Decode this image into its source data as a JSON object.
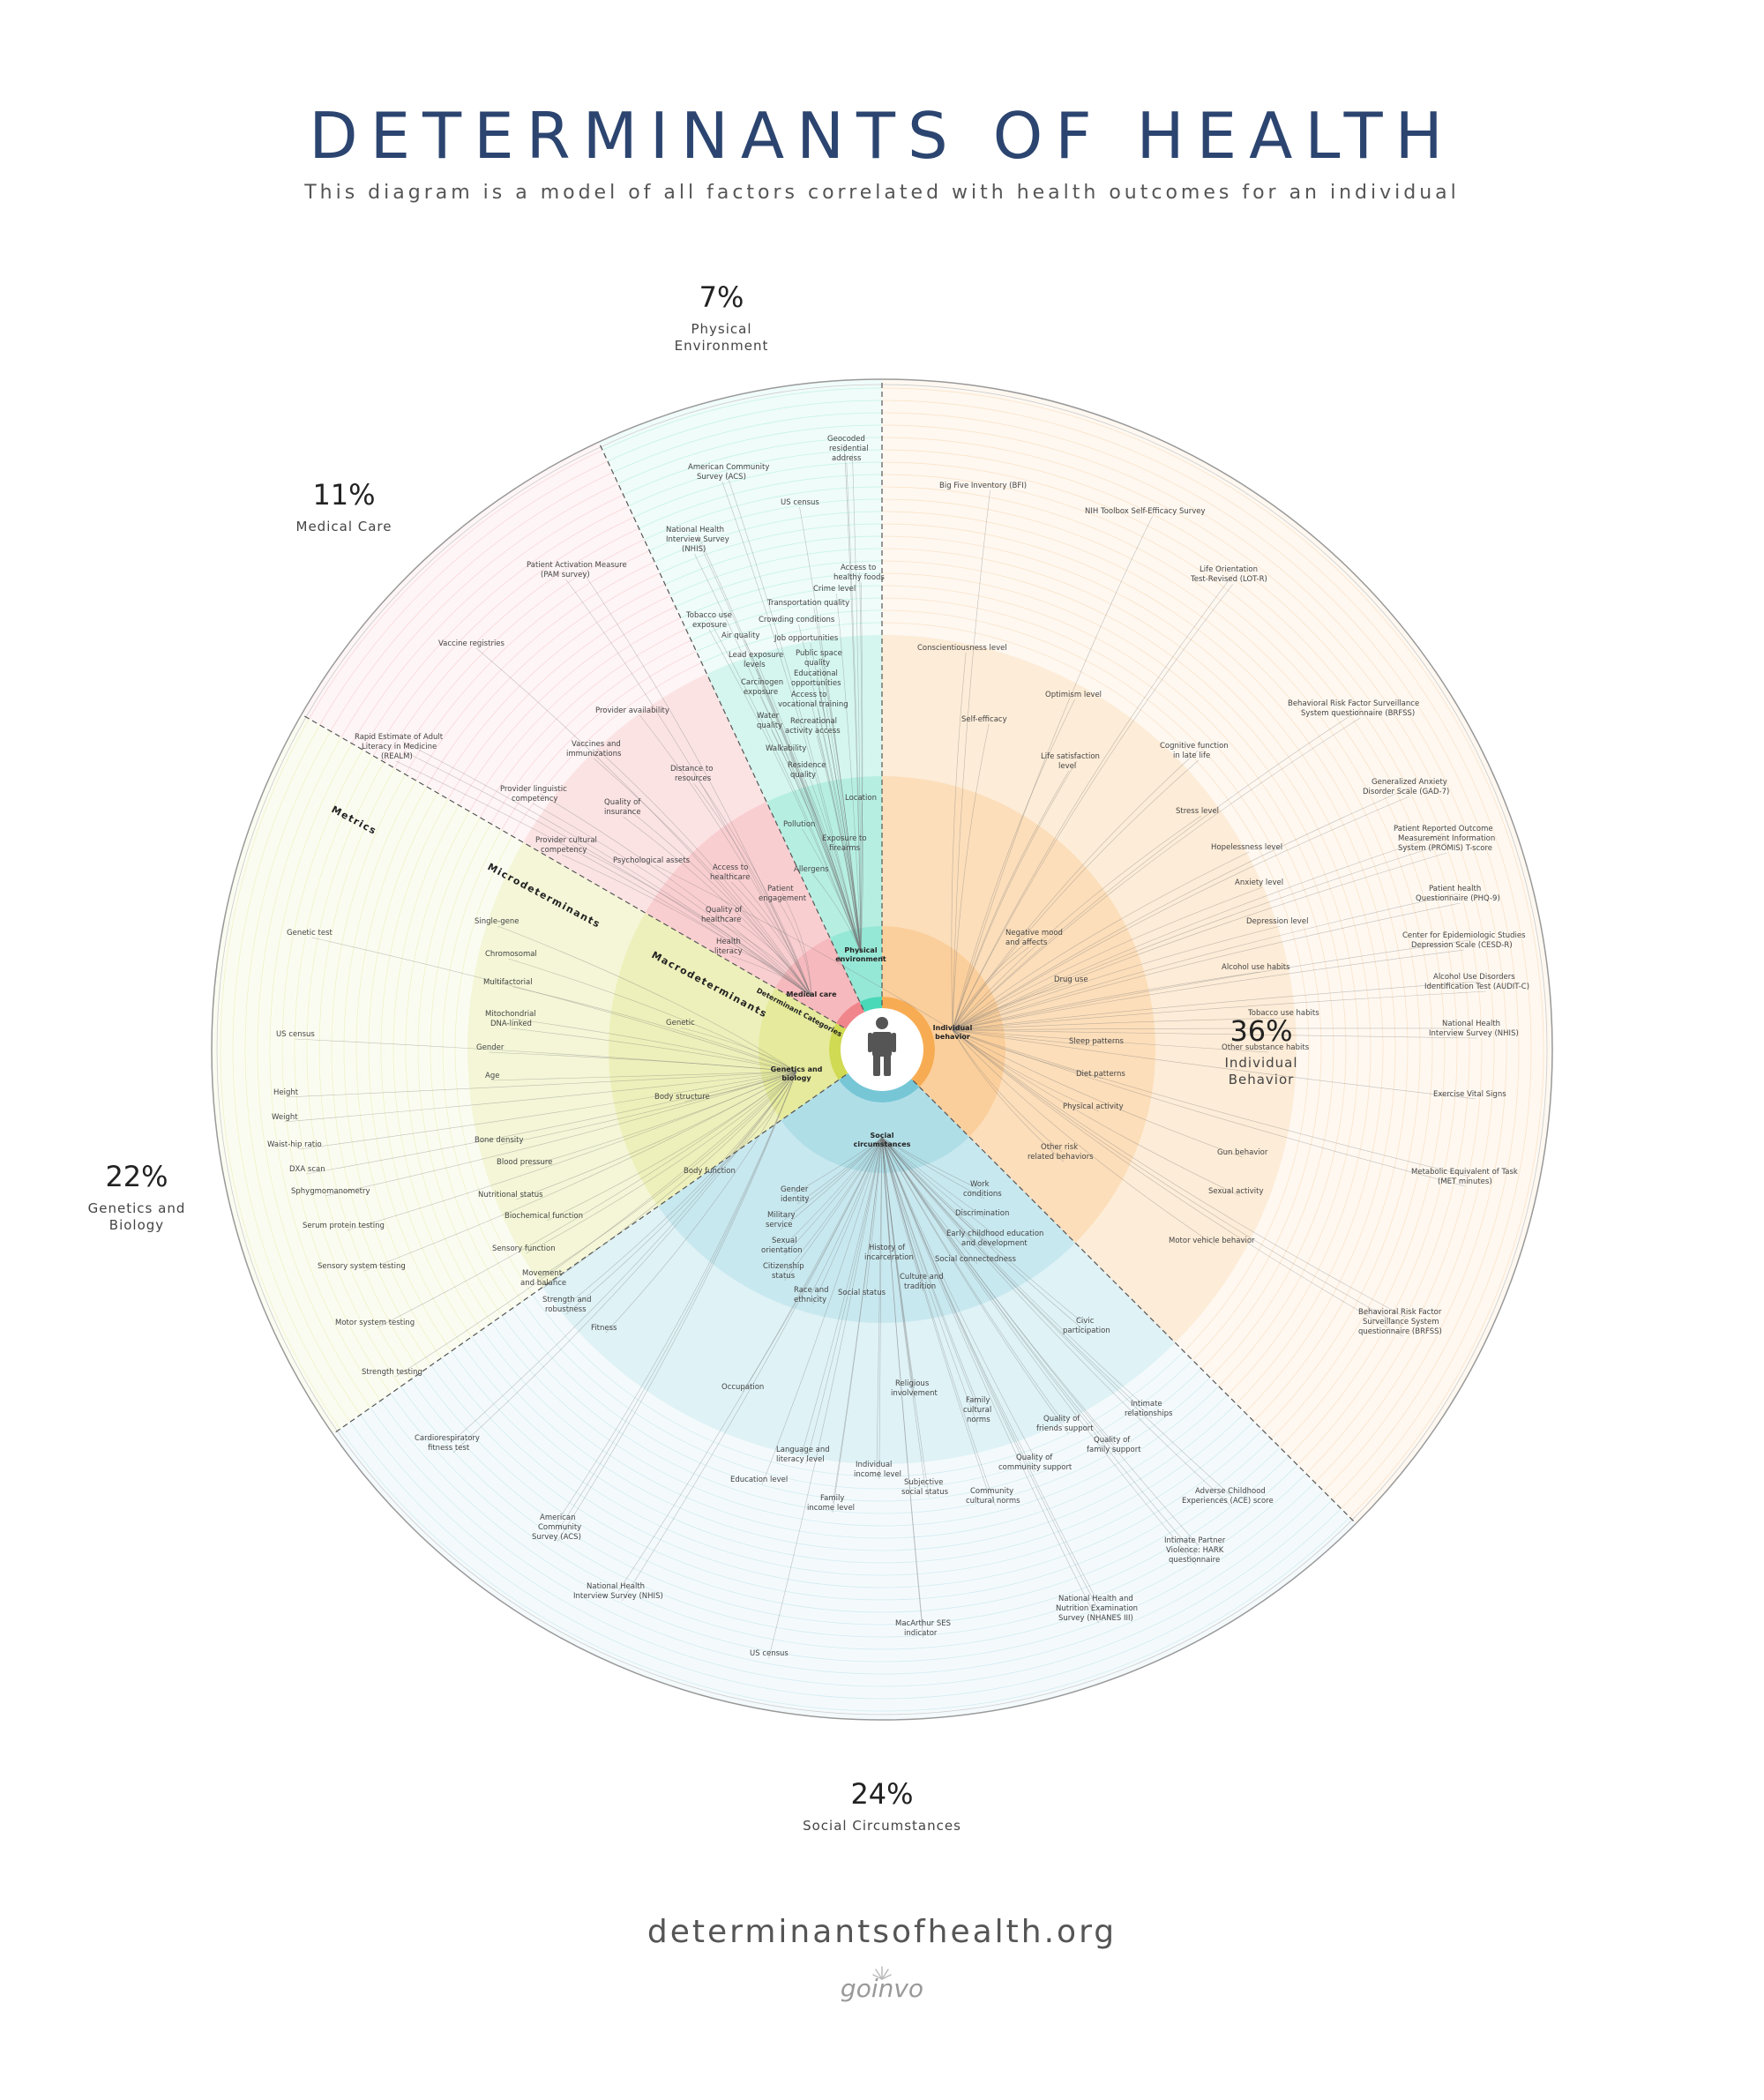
{
  "header": {
    "title": "DETERMINANTS OF HEALTH",
    "subtitle": "This diagram is a model of all factors correlated with health outcomes for an individual"
  },
  "colors": {
    "individual": "#f7a84a",
    "social": "#6fc3d4",
    "genetics": "#cfd84a",
    "medical": "#ef7f86",
    "physical": "#3fd6b4",
    "dashed": "#555555",
    "title": "#2c4570"
  },
  "ring_labels": {
    "metrics": "Metrics",
    "micro": "Microdeterminants",
    "macro": "Macrodeterminants",
    "categories": "Determinant Categories"
  },
  "sectors": [
    {
      "key": "individual",
      "percent": "36%",
      "name": [
        "Individual",
        "Behavior"
      ],
      "category": [
        "Individual",
        "behavior"
      ],
      "macro": [
        [
          "Psychological assets",
          695,
          978
        ],
        [
          "Negative mood",
          1140,
          1060
        ],
        [
          "and affects",
          1140,
          1071
        ],
        [
          "Drug use",
          1195,
          1113
        ],
        [
          "Sleep patterns",
          1212,
          1183
        ],
        [
          "Diet patterns",
          1220,
          1220
        ],
        [
          "Physical activity",
          1205,
          1257
        ],
        [
          "Other risk",
          1180,
          1303
        ],
        [
          "related behaviors",
          1165,
          1314
        ]
      ],
      "micro": [
        [
          "Conscientiousness level",
          1040,
          737
        ],
        [
          "Self-efficacy",
          1090,
          818
        ],
        [
          "Optimism level",
          1185,
          790
        ],
        [
          "Life satisfaction",
          1180,
          860
        ],
        [
          "level",
          1200,
          871
        ],
        [
          "Cognitive function",
          1315,
          848
        ],
        [
          "in late life",
          1330,
          859
        ],
        [
          "Stress level",
          1333,
          922
        ],
        [
          "Hopelessness level",
          1373,
          963
        ],
        [
          "Anxiety level",
          1400,
          1003
        ],
        [
          "Depression level",
          1413,
          1047
        ],
        [
          "Alcohol use habits",
          1385,
          1099
        ],
        [
          "Tobacco use habits",
          1415,
          1151
        ],
        [
          "Other substance habits",
          1385,
          1190
        ],
        [
          "Gun behavior",
          1380,
          1309
        ],
        [
          "Sexual activity",
          1370,
          1353
        ],
        [
          "Motor vehicle behavior",
          1325,
          1409
        ]
      ],
      "metrics": [
        [
          "Big Five Inventory (BFI)",
          1065,
          553
        ],
        [
          "NIH Toolbox Self-Efficacy Survey",
          1230,
          582
        ],
        [
          "Life Orientation",
          1360,
          648
        ],
        [
          "Test-Revised (LOT-R)",
          1350,
          659
        ],
        [
          "Behavioral Risk Factor Surveillance",
          1460,
          800
        ],
        [
          "System questionnaire (BRFSS)",
          1475,
          811
        ],
        [
          "Generalized Anxiety",
          1555,
          889
        ],
        [
          "Disorder Scale (GAD-7)",
          1545,
          900
        ],
        [
          "Patient Reported Outcome",
          1580,
          942
        ],
        [
          "Measurement Information",
          1585,
          953
        ],
        [
          "System (PROMIS) T-score",
          1585,
          964
        ],
        [
          "Patient health",
          1620,
          1010
        ],
        [
          "Questionnaire (PHQ-9)",
          1605,
          1021
        ],
        [
          "Center for Epidemiologic Studies",
          1590,
          1063
        ],
        [
          "Depression Scale (CESD-R)",
          1600,
          1074
        ],
        [
          "Alcohol Use Disorders",
          1625,
          1110
        ],
        [
          "Identification Test (AUDIT-C)",
          1615,
          1121
        ],
        [
          "National Health",
          1635,
          1163
        ],
        [
          "Interview Survey (NHIS)",
          1620,
          1174
        ],
        [
          "Exercise Vital Signs",
          1625,
          1243
        ],
        [
          "Metabolic Equivalent of Task",
          1600,
          1331
        ],
        [
          "(MET minutes)",
          1630,
          1342
        ],
        [
          "Behavioral Risk Factor",
          1540,
          1490
        ],
        [
          "Surveillance System",
          1545,
          1501
        ],
        [
          "questionnaire (BRFSS)",
          1540,
          1512
        ]
      ]
    },
    {
      "key": "social",
      "percent": "24%",
      "name": [
        "Social Circumstances"
      ],
      "category": [
        "Social",
        "circumstances"
      ],
      "macro": [
        [
          "Gender",
          885,
          1351
        ],
        [
          "identity",
          885,
          1362
        ],
        [
          "Military",
          870,
          1380
        ],
        [
          "service",
          868,
          1391
        ],
        [
          "Sexual",
          875,
          1409
        ],
        [
          "orientation",
          863,
          1420
        ],
        [
          "Citizenship",
          865,
          1438
        ],
        [
          "status",
          875,
          1449
        ],
        [
          "Race and",
          900,
          1465
        ],
        [
          "ethnicity",
          900,
          1476
        ],
        [
          "Social status",
          950,
          1468
        ],
        [
          "History of",
          985,
          1417
        ],
        [
          "incarceration",
          980,
          1428
        ],
        [
          "Culture and",
          1020,
          1450
        ],
        [
          "tradition",
          1025,
          1461
        ],
        [
          "Work",
          1100,
          1345
        ],
        [
          "conditions",
          1092,
          1356
        ],
        [
          "Discrimination",
          1083,
          1378
        ],
        [
          "Early childhood education",
          1073,
          1401
        ],
        [
          "and development",
          1090,
          1412
        ],
        [
          "Social connectedness",
          1060,
          1430
        ]
      ],
      "micro": [
        [
          "Occupation",
          818,
          1575
        ],
        [
          "Religious",
          1015,
          1571
        ],
        [
          "involvement",
          1010,
          1582
        ],
        [
          "Family",
          1095,
          1590
        ],
        [
          "cultural",
          1092,
          1601
        ],
        [
          "norms",
          1096,
          1612
        ],
        [
          "Civic",
          1220,
          1500
        ],
        [
          "participation",
          1205,
          1511
        ],
        [
          "Intimate",
          1282,
          1594
        ],
        [
          "relationships",
          1275,
          1605
        ],
        [
          "Quality of",
          1183,
          1611
        ],
        [
          "friends support",
          1175,
          1622
        ],
        [
          "Quality of",
          1240,
          1635
        ],
        [
          "family support",
          1232,
          1646
        ],
        [
          "Language and",
          880,
          1646
        ],
        [
          "literacy level",
          880,
          1657
        ],
        [
          "Individual",
          970,
          1663
        ],
        [
          "income level",
          968,
          1674
        ],
        [
          "Education level",
          828,
          1680
        ],
        [
          "Quality of",
          1152,
          1655
        ],
        [
          "community support",
          1132,
          1666
        ],
        [
          "Subjective",
          1025,
          1683
        ],
        [
          "social status",
          1022,
          1694
        ],
        [
          "Family",
          930,
          1701
        ],
        [
          "income level",
          915,
          1712
        ],
        [
          "Community",
          1100,
          1693
        ],
        [
          "cultural norms",
          1095,
          1704
        ]
      ],
      "metrics": [
        [
          "Adverse Childhood",
          1355,
          1693
        ],
        [
          "Experiences (ACE) score",
          1340,
          1704
        ],
        [
          "Intimate Partner",
          1320,
          1749
        ],
        [
          "Violence: HARK",
          1322,
          1760
        ],
        [
          "questionnaire",
          1325,
          1771
        ],
        [
          "National Health and",
          1200,
          1815
        ],
        [
          "Nutrition Examination",
          1197,
          1826
        ],
        [
          "Survey (NHANES III)",
          1200,
          1837
        ],
        [
          "MacArthur SES",
          1015,
          1843
        ],
        [
          "indicator",
          1025,
          1854
        ],
        [
          "US census",
          850,
          1877
        ],
        [
          "National Health",
          665,
          1801
        ],
        [
          "Interview Survey (NHIS)",
          650,
          1812
        ]
      ]
    },
    {
      "key": "genetics",
      "percent": "22%",
      "name": [
        "Genetics and",
        "Biology"
      ],
      "category": [
        "Genetics and",
        "biology"
      ],
      "macro": [
        [
          "Genetic",
          755,
          1162
        ],
        [
          "Body structure",
          742,
          1246
        ],
        [
          "Body function",
          775,
          1330
        ]
      ],
      "micro": [
        [
          "Single-gene",
          538,
          1047
        ],
        [
          "Chromosomal",
          550,
          1084
        ],
        [
          "Multifactorial",
          548,
          1116
        ],
        [
          "Mitochondrial",
          550,
          1152
        ],
        [
          "DNA-linked",
          556,
          1163
        ],
        [
          "Gender",
          540,
          1190
        ],
        [
          "Age",
          550,
          1222
        ],
        [
          "Bone density",
          538,
          1295
        ],
        [
          "Blood pressure",
          563,
          1320
        ],
        [
          "Nutritional status",
          542,
          1357
        ],
        [
          "Biochemical function",
          572,
          1381
        ],
        [
          "Sensory function",
          558,
          1418
        ],
        [
          "Movement",
          592,
          1446
        ],
        [
          "and balance",
          590,
          1457
        ],
        [
          "Strength and",
          615,
          1476
        ],
        [
          "robustness",
          618,
          1487
        ],
        [
          "Fitness",
          670,
          1508
        ]
      ],
      "metrics": [
        [
          "Genetic test",
          325,
          1060
        ],
        [
          "US census",
          313,
          1175
        ],
        [
          "Height",
          310,
          1241
        ],
        [
          "Weight",
          308,
          1269
        ],
        [
          "Waist-hip ratio",
          303,
          1300
        ],
        [
          "DXA scan",
          328,
          1328
        ],
        [
          "Sphygmomanometry",
          330,
          1353
        ],
        [
          "Serum protein testing",
          343,
          1392
        ],
        [
          "Sensory system testing",
          360,
          1438
        ],
        [
          "Motor system testing",
          380,
          1502
        ],
        [
          "Strength testing",
          410,
          1558
        ],
        [
          "Cardiorespiratory",
          470,
          1633
        ],
        [
          "fitness test",
          485,
          1644
        ],
        [
          "American",
          612,
          1723
        ],
        [
          "Community",
          610,
          1734
        ],
        [
          "Survey (ACS)",
          603,
          1745
        ]
      ]
    },
    {
      "key": "medical",
      "percent": "11%",
      "name": [
        "Medical Care"
      ],
      "category": [
        "Medical care"
      ],
      "macro": [
        [
          "Patient",
          870,
          1010
        ],
        [
          "engagement",
          860,
          1021
        ],
        [
          "Quality of",
          800,
          1034
        ],
        [
          "healthcare",
          795,
          1045
        ],
        [
          "Health",
          812,
          1070
        ],
        [
          "literacy",
          810,
          1081
        ],
        [
          "Access to",
          808,
          986
        ],
        [
          "healthcare",
          805,
          997
        ]
      ],
      "micro": [
        [
          "Provider availability",
          675,
          808
        ],
        [
          "Vaccines and",
          648,
          846
        ],
        [
          "immunizations",
          642,
          857
        ],
        [
          "Distance to",
          760,
          874
        ],
        [
          "resources",
          765,
          885
        ],
        [
          "Provider linguistic",
          567,
          897
        ],
        [
          "competency",
          580,
          908
        ],
        [
          "Quality of",
          685,
          912
        ],
        [
          "insurance",
          685,
          923
        ],
        [
          "Provider cultural",
          607,
          955
        ],
        [
          "competency",
          613,
          966
        ]
      ],
      "metrics": [
        [
          "Patient Activation Measure",
          597,
          643
        ],
        [
          "(PAM survey)",
          613,
          654
        ],
        [
          "Vaccine registries",
          497,
          732
        ],
        [
          "Rapid Estimate of Adult",
          402,
          838
        ],
        [
          "Literacy in Medicine",
          410,
          849
        ],
        [
          "(REALM)",
          432,
          860
        ]
      ]
    },
    {
      "key": "physical",
      "percent": "7%",
      "name": [
        "Physical",
        "Environment"
      ],
      "category": [
        "Physical",
        "environment"
      ],
      "macro": [
        [
          "Location",
          958,
          907
        ],
        [
          "Pollution",
          888,
          937
        ],
        [
          "Exposure to",
          932,
          953
        ],
        [
          "firearms",
          940,
          964
        ],
        [
          "Allergens",
          900,
          988
        ]
      ],
      "micro": [
        [
          "Access to",
          953,
          646
        ],
        [
          "healthy foods",
          945,
          657
        ],
        [
          "Crime level",
          922,
          670
        ],
        [
          "Transportation quality",
          870,
          686
        ],
        [
          "Crowding conditions",
          860,
          705
        ],
        [
          "Tobacco use",
          778,
          700
        ],
        [
          "exposure",
          785,
          711
        ],
        [
          "Air quality",
          818,
          723
        ],
        [
          "Job opportunities",
          878,
          726
        ],
        [
          "Lead exposure",
          826,
          745
        ],
        [
          "levels",
          843,
          756
        ],
        [
          "Public space",
          902,
          743
        ],
        [
          "quality",
          912,
          754
        ],
        [
          "Educational",
          900,
          766
        ],
        [
          "opportunities",
          897,
          777
        ],
        [
          "Carcinogen",
          840,
          776
        ],
        [
          "exposure",
          843,
          787
        ],
        [
          "Access to",
          897,
          790
        ],
        [
          "vocational training",
          882,
          801
        ],
        [
          "Water",
          858,
          814
        ],
        [
          "quality",
          858,
          825
        ],
        [
          "Recreational",
          896,
          820
        ],
        [
          "activity access",
          890,
          831
        ],
        [
          "Walkability",
          868,
          851
        ],
        [
          "Residence",
          893,
          870
        ],
        [
          "quality",
          896,
          881
        ]
      ],
      "metrics": [
        [
          "Geocoded",
          938,
          500
        ],
        [
          "residential",
          940,
          511
        ],
        [
          "address",
          943,
          522
        ],
        [
          "American Community",
          780,
          532
        ],
        [
          "Survey (ACS)",
          790,
          543
        ],
        [
          "US census",
          885,
          572
        ],
        [
          "National Health",
          755,
          603
        ],
        [
          "Interview Survey",
          755,
          614
        ],
        [
          "(NHIS)",
          773,
          625
        ]
      ]
    }
  ],
  "footer": {
    "url": "determinantsofhealth.org",
    "logo": "goinvo"
  }
}
